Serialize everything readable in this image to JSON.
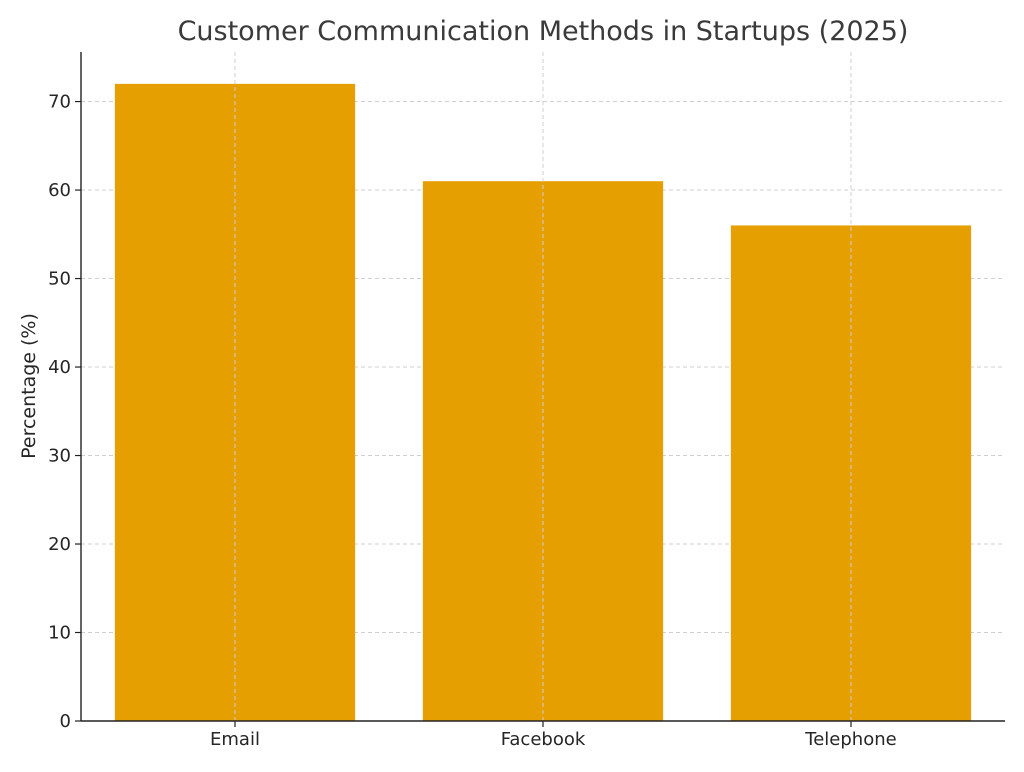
{
  "chart_data": {
    "type": "bar",
    "title": "Customer Communication Methods in Startups (2025)",
    "xlabel": "",
    "ylabel": "Percentage (%)",
    "categories": [
      "Email",
      "Facebook",
      "Telephone"
    ],
    "values": [
      72,
      61,
      56
    ],
    "ylim": [
      0,
      75.6
    ],
    "yticks": [
      0,
      10,
      20,
      30,
      40,
      50,
      60,
      70
    ],
    "grid": true,
    "bar_color": "#E69F00",
    "legend": "none"
  }
}
